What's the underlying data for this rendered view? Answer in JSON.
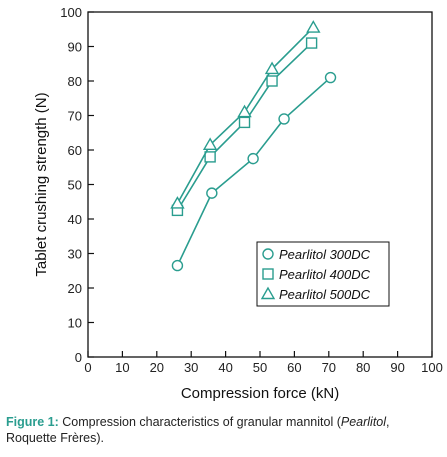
{
  "chart_data": {
    "type": "line",
    "xlabel": "Compression force (kN)",
    "ylabel": "Tablet crushing strength (N)",
    "xlim": [
      0,
      100
    ],
    "ylim": [
      0,
      100
    ],
    "xticks": [
      "0",
      "10",
      "20",
      "30",
      "40",
      "50",
      "60",
      "70",
      "80",
      "90",
      "100"
    ],
    "yticks": [
      "0",
      "10",
      "20",
      "30",
      "40",
      "50",
      "60",
      "70",
      "80",
      "90",
      "100"
    ],
    "grid": false,
    "legend_position": "bottom-right",
    "line_color": "#2a9d8f",
    "series": [
      {
        "name": "Pearlitol 300DC",
        "marker": "circle",
        "x": [
          26,
          36,
          48,
          57,
          70.5
        ],
        "y": [
          26.5,
          47.5,
          57.5,
          69,
          81
        ]
      },
      {
        "name": "Pearlitol 400DC",
        "marker": "square",
        "x": [
          26,
          35.5,
          45.5,
          53.5,
          65
        ],
        "y": [
          42.5,
          58,
          68,
          80,
          91
        ]
      },
      {
        "name": "Pearlitol 500DC",
        "marker": "triangle",
        "x": [
          26,
          35.5,
          45.5,
          53.5,
          65.5
        ],
        "y": [
          44.5,
          61.5,
          71,
          83.5,
          95.5
        ]
      }
    ]
  },
  "caption": {
    "lead": "Figure 1:",
    "text_before": " Compression characteristics of granular mannitol (",
    "italic": "Pearlitol",
    "text_after": ", Roquette Frères)."
  }
}
